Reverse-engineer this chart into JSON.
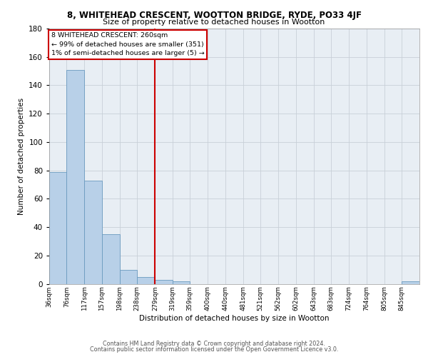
{
  "title": "8, WHITEHEAD CRESCENT, WOOTTON BRIDGE, RYDE, PO33 4JF",
  "subtitle": "Size of property relative to detached houses in Wootton",
  "xlabel": "Distribution of detached houses by size in Wootton",
  "ylabel": "Number of detached properties",
  "bar_color": "#b8d0e8",
  "bar_edge_color": "#6a9abf",
  "background_color": "#e8eef4",
  "grid_color": "#c8d0d8",
  "bin_labels": [
    "36sqm",
    "76sqm",
    "117sqm",
    "157sqm",
    "198sqm",
    "238sqm",
    "279sqm",
    "319sqm",
    "359sqm",
    "400sqm",
    "440sqm",
    "481sqm",
    "521sqm",
    "562sqm",
    "602sqm",
    "643sqm",
    "683sqm",
    "724sqm",
    "764sqm",
    "805sqm",
    "845sqm"
  ],
  "bin_edges": [
    36,
    76,
    117,
    157,
    198,
    238,
    279,
    319,
    359,
    400,
    440,
    481,
    521,
    562,
    602,
    643,
    683,
    724,
    764,
    805,
    845,
    886
  ],
  "bar_heights": [
    79,
    151,
    73,
    35,
    10,
    5,
    3,
    2,
    0,
    0,
    0,
    0,
    0,
    0,
    0,
    0,
    0,
    0,
    0,
    0,
    2
  ],
  "vline_x": 279,
  "vline_color": "#cc0000",
  "annotation_title": "8 WHITEHEAD CRESCENT: 260sqm",
  "annotation_line1": "← 99% of detached houses are smaller (351)",
  "annotation_line2": "1% of semi-detached houses are larger (5) →",
  "annotation_box_edge": "#cc0000",
  "footer_line1": "Contains HM Land Registry data © Crown copyright and database right 2024.",
  "footer_line2": "Contains public sector information licensed under the Open Government Licence v3.0.",
  "ylim": [
    0,
    180
  ],
  "yticks": [
    0,
    20,
    40,
    60,
    80,
    100,
    120,
    140,
    160,
    180
  ],
  "xlim_left": 36,
  "xlim_right": 886
}
